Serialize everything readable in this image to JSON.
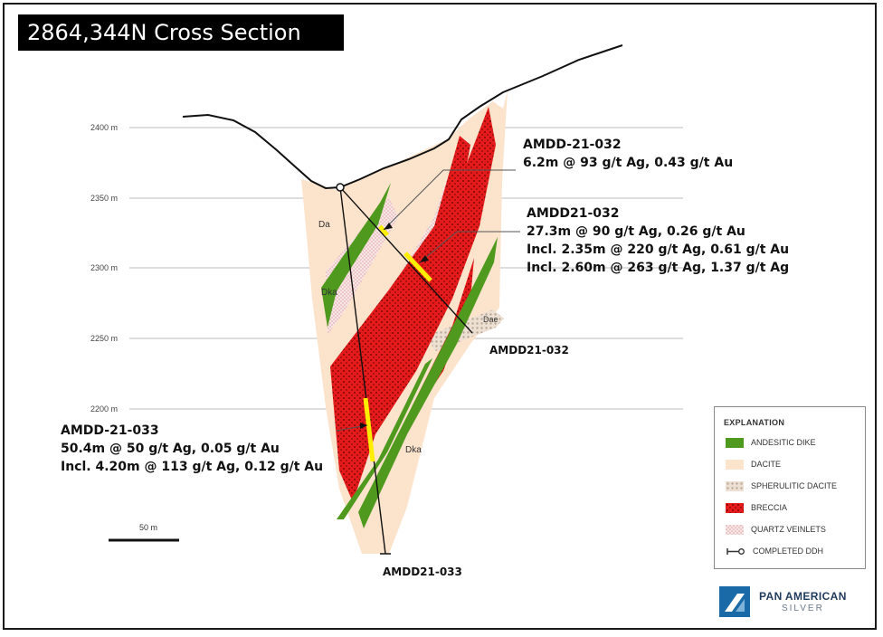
{
  "title": "2864,344N Cross Section",
  "elevations": [
    "2400 m",
    "2350 m",
    "2300 m",
    "2250 m",
    "2200 m"
  ],
  "unit_labels": {
    "da": "Da",
    "dka_upper": "Dka",
    "dka_lower": "Dka",
    "dae": "Dae"
  },
  "annotations": {
    "hole032_top": {
      "line1": "AMDD-21-032",
      "line2": "6.2m @ 93 g/t Ag, 0.43 g/t Au"
    },
    "hole032_main": {
      "line1": "AMDD21-032",
      "line2": "27.3m @ 90 g/t Ag, 0.26 g/t Au",
      "line3": "Incl. 2.35m @ 220 g/t Ag, 0.61 g/t Au",
      "line4": "Incl. 2.60m @ 263 g/t Ag, 1.37 g/t Ag"
    },
    "hole033": {
      "line1": "AMDD-21-033",
      "line2": "50.4m @ 50 g/t Ag, 0.05 g/t Au",
      "line3": "Incl. 4.20m @ 113 g/t Ag, 0.12 g/t Au"
    }
  },
  "hole_labels": {
    "hole032": "AMDD21-032",
    "hole033": "AMDD21-033"
  },
  "scale_bar": "50 m",
  "legend": {
    "title": "EXPLANATION",
    "items": [
      {
        "label": "ANDESITIC DIKE",
        "color": "#4f9a1e"
      },
      {
        "label": "DACITE",
        "color": "#fbe3cc"
      },
      {
        "label": "SPHERULITIC DACITE",
        "color": "#e9d8c8"
      },
      {
        "label": "BRECCIA",
        "color": "#e51b1b"
      },
      {
        "label": "QUARTZ VEINLETS",
        "color": "#f6dede"
      },
      {
        "label": "COMPLETED DDH",
        "color": "#333333"
      }
    ]
  },
  "logo": {
    "name": "PAN AMERICAN",
    "sub": "SILVER"
  },
  "colors": {
    "breccia": "#e51b1b",
    "dacite": "#fbe3cc",
    "dike": "#4f9a1e",
    "intercept": "#ffee00"
  }
}
